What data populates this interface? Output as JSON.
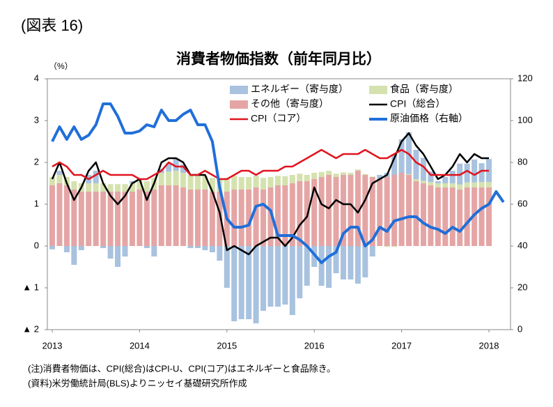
{
  "chart_data": {
    "type": "bar_line",
    "figure_label": "(図表 16)",
    "title": "消費者物価指数（前年同月比）",
    "y_unit": "（%）",
    "categories": [
      "2013",
      null,
      null,
      null,
      null,
      null,
      null,
      null,
      null,
      null,
      null,
      null,
      "2014",
      null,
      null,
      null,
      null,
      null,
      null,
      null,
      null,
      null,
      null,
      null,
      "2015",
      null,
      null,
      null,
      null,
      null,
      null,
      null,
      null,
      null,
      null,
      null,
      "2016",
      null,
      null,
      null,
      null,
      null,
      null,
      null,
      null,
      null,
      null,
      null,
      "2017",
      null,
      null,
      null,
      null,
      null,
      null,
      null,
      null,
      null,
      null,
      null,
      "2018",
      null,
      null
    ],
    "ylim": [
      -2,
      4
    ],
    "yticks": [
      {
        "value": -2,
        "label": "▲ 2"
      },
      {
        "value": -1,
        "label": "▲ 1"
      },
      0,
      1,
      2,
      3,
      4
    ],
    "y2lim": [
      0,
      120
    ],
    "y2ticks": [
      0,
      20,
      40,
      60,
      80,
      100,
      120
    ],
    "series": [
      {
        "name": "エネルギー（寄与度）",
        "kind": "bar",
        "color": "#a8c2df",
        "values": [
          -0.08,
          0.1,
          -0.15,
          -0.45,
          -0.1,
          0.2,
          0.3,
          -0.05,
          -0.3,
          -0.5,
          -0.25,
          0.05,
          0.03,
          -0.05,
          -0.25,
          0.1,
          0.2,
          0.3,
          0.2,
          -0.05,
          -0.05,
          -0.1,
          -0.15,
          -0.35,
          -1.0,
          -1.8,
          -1.75,
          -1.75,
          -1.85,
          -1.55,
          -1.45,
          -1.45,
          -1.4,
          -1.65,
          -1.25,
          -0.95,
          -0.5,
          -0.95,
          -1.0,
          -0.65,
          -0.8,
          -0.8,
          -0.9,
          -0.75,
          -0.25,
          0.1,
          0.1,
          0.5,
          0.8,
          1.0,
          0.7,
          0.55,
          0.25,
          0.05,
          0.15,
          0.3,
          0.5,
          0.45,
          0.55,
          0.45,
          0.55,
          null,
          null
        ]
      },
      {
        "name": "食品（寄与度）",
        "kind": "bar",
        "color": "#d5e2ae",
        "values": [
          0.2,
          0.2,
          0.2,
          0.2,
          0.2,
          0.2,
          0.2,
          0.2,
          0.18,
          0.18,
          0.18,
          0.2,
          0.22,
          0.25,
          0.28,
          0.3,
          0.33,
          0.35,
          0.35,
          0.35,
          0.33,
          0.33,
          0.33,
          0.33,
          0.33,
          0.33,
          0.3,
          0.3,
          0.28,
          0.28,
          0.25,
          0.23,
          0.22,
          0.2,
          0.18,
          0.15,
          0.15,
          0.12,
          0.1,
          0.08,
          0.06,
          0.05,
          0.03,
          0.02,
          0.01,
          0.0,
          -0.02,
          -0.02,
          0.0,
          0.02,
          0.05,
          0.06,
          0.08,
          0.1,
          0.1,
          0.1,
          0.12,
          0.12,
          0.12,
          0.13,
          0.13,
          null,
          null
        ]
      },
      {
        "name": "その他（寄与度）",
        "kind": "bar",
        "color": "#e5a5a5",
        "values": [
          1.45,
          1.5,
          1.45,
          1.35,
          1.3,
          1.3,
          1.3,
          1.3,
          1.3,
          1.3,
          1.3,
          1.3,
          1.35,
          1.3,
          1.35,
          1.45,
          1.45,
          1.45,
          1.4,
          1.35,
          1.35,
          1.35,
          1.3,
          1.3,
          1.3,
          1.35,
          1.35,
          1.35,
          1.4,
          1.35,
          1.4,
          1.45,
          1.45,
          1.5,
          1.55,
          1.55,
          1.6,
          1.65,
          1.7,
          1.65,
          1.7,
          1.7,
          1.8,
          1.7,
          1.65,
          1.6,
          1.65,
          1.7,
          1.75,
          1.7,
          1.55,
          1.5,
          1.45,
          1.4,
          1.4,
          1.4,
          1.35,
          1.4,
          1.4,
          1.4,
          1.4,
          null,
          null
        ]
      },
      {
        "name": "CPI（総合）",
        "kind": "line",
        "color": "#000000",
        "width": 2.5,
        "values": [
          1.6,
          2.0,
          1.5,
          1.1,
          1.4,
          1.8,
          2.0,
          1.5,
          1.2,
          1.0,
          1.2,
          1.5,
          1.6,
          1.1,
          1.5,
          2.0,
          2.1,
          2.1,
          2.0,
          1.7,
          1.7,
          1.7,
          1.3,
          0.8,
          -0.1,
          0.0,
          -0.1,
          -0.2,
          0.0,
          0.1,
          0.2,
          0.2,
          0.0,
          0.2,
          0.5,
          0.7,
          1.4,
          1.0,
          0.9,
          1.1,
          1.0,
          1.0,
          0.8,
          1.1,
          1.5,
          1.6,
          1.7,
          2.1,
          2.5,
          2.7,
          2.4,
          2.2,
          1.9,
          1.6,
          1.7,
          1.9,
          2.2,
          2.0,
          2.2,
          2.1,
          2.1,
          null,
          null
        ]
      },
      {
        "name": "CPI（コア）",
        "kind": "line",
        "color": "#e0141e",
        "width": 2.5,
        "values": [
          1.9,
          2.0,
          1.9,
          1.7,
          1.7,
          1.6,
          1.7,
          1.8,
          1.7,
          1.7,
          1.7,
          1.7,
          1.6,
          1.6,
          1.7,
          1.8,
          2.0,
          1.9,
          1.9,
          1.7,
          1.7,
          1.8,
          1.7,
          1.6,
          1.6,
          1.7,
          1.8,
          1.8,
          1.7,
          1.8,
          1.8,
          1.8,
          1.9,
          1.9,
          2.0,
          2.1,
          2.2,
          2.3,
          2.2,
          2.1,
          2.2,
          2.2,
          2.2,
          2.3,
          2.2,
          2.1,
          2.1,
          2.2,
          2.3,
          2.2,
          2.0,
          1.9,
          1.7,
          1.7,
          1.7,
          1.7,
          1.7,
          1.8,
          1.7,
          1.8,
          1.8,
          null,
          null
        ]
      },
      {
        "name": "原油価格（右軸）",
        "kind": "line",
        "axis": "y2",
        "color": "#1f6fd9",
        "width": 4,
        "values": [
          90,
          97,
          91,
          97,
          91,
          93,
          98,
          108,
          108,
          102,
          94,
          94,
          95,
          98,
          97,
          105,
          100,
          100,
          103,
          105,
          98,
          98,
          90,
          68,
          53,
          49,
          49,
          50,
          59,
          60,
          57,
          45,
          45,
          45,
          43,
          40,
          36,
          32,
          35,
          37,
          46,
          49,
          49,
          40,
          43,
          49,
          47,
          52,
          53,
          54,
          54,
          51,
          49,
          48,
          46,
          49,
          47,
          51,
          55,
          58,
          60,
          66,
          61
        ]
      }
    ],
    "notes": [
      "(注)消費者物価は、CPI(総合)はCPI-U、CPI(コア)はエネルギーと食品除き。",
      "(資料)米労働統計局(BLS)よりニッセイ基礎研究所作成"
    ]
  }
}
